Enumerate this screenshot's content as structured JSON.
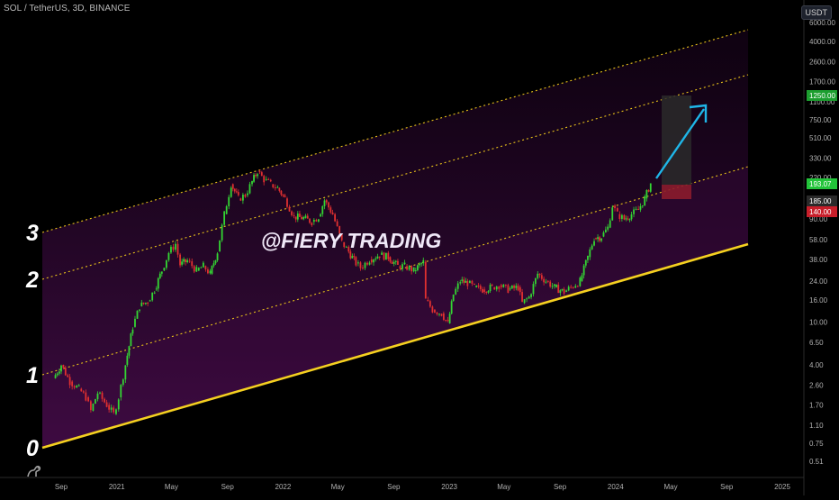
{
  "header": {
    "symbol": "SOL / TetherUS, 3D, BINANCE",
    "currency": "USDT"
  },
  "watermark": "@FIERY TRADING",
  "colors": {
    "background": "#000000",
    "band_fill": "#3b0a3f",
    "base_line": "#f5d020",
    "dotted_line": "#e8c21a",
    "candle_up": "#33d633",
    "candle_down": "#e03030",
    "arrow": "#1fb6e8",
    "target_box": "#2a2a2a",
    "stop_box": "#8b1c2c"
  },
  "chart_data": {
    "type": "candlestick",
    "symbol": "SOL / TetherUS",
    "interval": "3D",
    "exchange": "BINANCE",
    "y_scale": "log",
    "x_tick_labels": [
      "Sep",
      "2021",
      "May",
      "Sep",
      "2022",
      "May",
      "Sep",
      "2023",
      "May",
      "Sep",
      "2024",
      "May",
      "Sep",
      "2025"
    ],
    "y_tick_labels": [
      "6000.00",
      "4000.00",
      "2600.00",
      "1700.00",
      "1100.00",
      "750.00",
      "510.00",
      "330.00",
      "220.00",
      "140.00",
      "90.00",
      "58.00",
      "38.00",
      "24.00",
      "16.00",
      "10.00",
      "6.50",
      "4.00",
      "2.60",
      "1.70",
      "1.10",
      "0.75",
      "0.51"
    ],
    "price_labels": [
      {
        "text": "1250.00",
        "color": "#1c9e2f"
      },
      {
        "text": "193.07",
        "color": "#22c43a"
      },
      {
        "text": "185.00",
        "color": "#2a2a2a"
      },
      {
        "text": "140.00",
        "color": "#c81e2a"
      }
    ],
    "channel_labels": [
      "3",
      "2",
      "1",
      "0"
    ],
    "channel_lines": [
      {
        "name": "0",
        "style": "solid"
      },
      {
        "name": "1",
        "style": "dotted"
      },
      {
        "name": "2",
        "style": "dotted"
      },
      {
        "name": "3",
        "style": "dotted"
      }
    ],
    "price_path": [
      [
        "2020-08-15",
        3.0
      ],
      [
        "2020-09-01",
        4.0
      ],
      [
        "2020-09-20",
        2.8
      ],
      [
        "2020-10-10",
        2.4
      ],
      [
        "2020-10-25",
        2.0
      ],
      [
        "2020-11-05",
        1.5
      ],
      [
        "2020-11-20",
        2.2
      ],
      [
        "2020-12-10",
        1.7
      ],
      [
        "2020-12-25",
        1.4
      ],
      [
        "2021-01-05",
        2.0
      ],
      [
        "2021-01-20",
        4.0
      ],
      [
        "2021-02-05",
        9.0
      ],
      [
        "2021-02-20",
        14.0
      ],
      [
        "2021-03-10",
        15.5
      ],
      [
        "2021-03-25",
        20.0
      ],
      [
        "2021-04-10",
        30.0
      ],
      [
        "2021-04-25",
        44.0
      ],
      [
        "2021-05-10",
        53.0
      ],
      [
        "2021-05-20",
        34.0
      ],
      [
        "2021-06-05",
        37.0
      ],
      [
        "2021-06-25",
        30.0
      ],
      [
        "2021-07-10",
        33.0
      ],
      [
        "2021-07-25",
        28.0
      ],
      [
        "2021-08-10",
        45.0
      ],
      [
        "2021-08-25",
        100.0
      ],
      [
        "2021-09-09",
        190.0
      ],
      [
        "2021-09-25",
        140.0
      ],
      [
        "2021-10-10",
        150.0
      ],
      [
        "2021-10-25",
        200.0
      ],
      [
        "2021-11-06",
        250.0
      ],
      [
        "2021-11-20",
        210.0
      ],
      [
        "2021-12-05",
        190.0
      ],
      [
        "2021-12-20",
        175.0
      ],
      [
        "2022-01-05",
        140.0
      ],
      [
        "2022-01-25",
        95.0
      ],
      [
        "2022-02-15",
        92.0
      ],
      [
        "2022-03-05",
        85.0
      ],
      [
        "2022-03-20",
        95.0
      ],
      [
        "2022-04-02",
        135.0
      ],
      [
        "2022-04-20",
        100.0
      ],
      [
        "2022-05-10",
        55.0
      ],
      [
        "2022-05-25",
        45.0
      ],
      [
        "2022-06-10",
        35.0
      ],
      [
        "2022-06-20",
        32.0
      ],
      [
        "2022-07-10",
        38.0
      ],
      [
        "2022-08-01",
        42.0
      ],
      [
        "2022-08-20",
        40.0
      ],
      [
        "2022-09-10",
        33.0
      ],
      [
        "2022-09-25",
        33.0
      ],
      [
        "2022-10-15",
        30.0
      ],
      [
        "2022-11-05",
        36.0
      ],
      [
        "2022-11-10",
        16.0
      ],
      [
        "2022-11-25",
        13.0
      ],
      [
        "2022-12-15",
        12.0
      ],
      [
        "2022-12-29",
        9.7
      ],
      [
        "2023-01-10",
        18.0
      ],
      [
        "2023-01-25",
        24.0
      ],
      [
        "2023-02-10",
        23.0
      ],
      [
        "2023-02-25",
        21.0
      ],
      [
        "2023-03-15",
        20.0
      ],
      [
        "2023-04-05",
        21.0
      ],
      [
        "2023-04-20",
        22.0
      ],
      [
        "2023-05-10",
        20.0
      ],
      [
        "2023-06-01",
        21.0
      ],
      [
        "2023-06-10",
        15.0
      ],
      [
        "2023-06-25",
        17.0
      ],
      [
        "2023-07-14",
        28.0
      ],
      [
        "2023-08-01",
        24.0
      ],
      [
        "2023-08-20",
        21.0
      ],
      [
        "2023-09-10",
        19.0
      ],
      [
        "2023-09-25",
        21.0
      ],
      [
        "2023-10-15",
        24.0
      ],
      [
        "2023-11-01",
        40.0
      ],
      [
        "2023-11-15",
        60.0
      ],
      [
        "2023-12-01",
        62.0
      ],
      [
        "2023-12-15",
        75.0
      ],
      [
        "2023-12-25",
        120.0
      ],
      [
        "2024-01-05",
        100.0
      ],
      [
        "2024-01-20",
        90.0
      ],
      [
        "2024-02-05",
        100.0
      ],
      [
        "2024-02-20",
        110.0
      ],
      [
        "2024-03-05",
        140.0
      ],
      [
        "2024-03-18",
        193.07
      ]
    ]
  }
}
